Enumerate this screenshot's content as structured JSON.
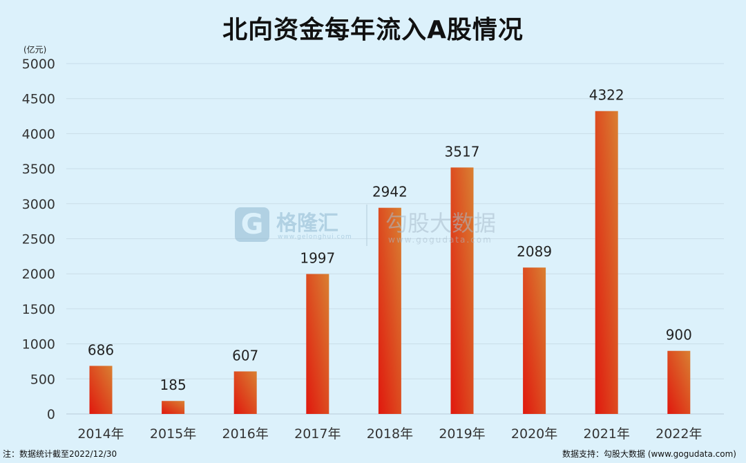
{
  "chart_data": {
    "type": "bar",
    "title": "北向资金每年流入A股情况",
    "unit_label": "(亿元)",
    "categories": [
      "2014年",
      "2015年",
      "2016年",
      "2017年",
      "2018年",
      "2019年",
      "2020年",
      "2021年",
      "2022年"
    ],
    "values": [
      686,
      185,
      607,
      1997,
      2942,
      3517,
      2089,
      4322,
      900
    ],
    "data_labels": [
      "686",
      "185",
      "607",
      "1997",
      "2942",
      "3517",
      "2089",
      "4322",
      "900"
    ],
    "ylim": [
      0,
      5000
    ],
    "yticks": [
      "0",
      "500",
      "1000",
      "1500",
      "2000",
      "2500",
      "3000",
      "3500",
      "4000",
      "4500",
      "5000"
    ],
    "grid": true,
    "legend": "none",
    "bar_gradient": [
      "#e0180e",
      "#d98032"
    ],
    "grid_color": "#c9dde8"
  },
  "watermark": {
    "logo_letter": "G",
    "brand": "格隆汇",
    "brand_url": "www.gelonghui.com",
    "name": "勾股大数据",
    "name_url": "www.gogudata.com"
  },
  "footer": {
    "note": "注：数据统计截至2022/12/30",
    "source": "数据支持：勾股大数据  (www.gogudata.com)"
  }
}
